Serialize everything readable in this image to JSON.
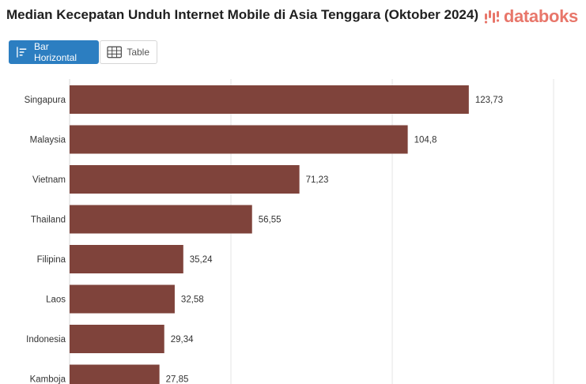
{
  "header": {
    "title": "Median Kecepatan Unduh Internet Mobile di Asia Tenggara (Oktober 2024)",
    "brand": "databoks"
  },
  "toolbar": {
    "bar_label": "Bar Horizontal",
    "table_label": "Table"
  },
  "colors": {
    "bar": "#7f433b",
    "active_button": "#2c7ec1",
    "brand": "#e8766a",
    "gridline": "#e6e6e6"
  },
  "chart_data": {
    "type": "bar",
    "orientation": "horizontal",
    "categories": [
      "Singapura",
      "Malaysia",
      "Vietnam",
      "Thailand",
      "Filipina",
      "Laos",
      "Indonesia",
      "Kamboja"
    ],
    "values": [
      123.73,
      104.8,
      71.23,
      56.55,
      35.24,
      32.58,
      29.34,
      27.85
    ],
    "value_labels": [
      "123,73",
      "104,8",
      "71,23",
      "56,55",
      "35,24",
      "32,58",
      "29,34",
      "27,85"
    ],
    "title": "Median Kecepatan Unduh Internet Mobile di Asia Tenggara (Oktober 2024)",
    "xlim": [
      0,
      150
    ],
    "grid": true
  }
}
